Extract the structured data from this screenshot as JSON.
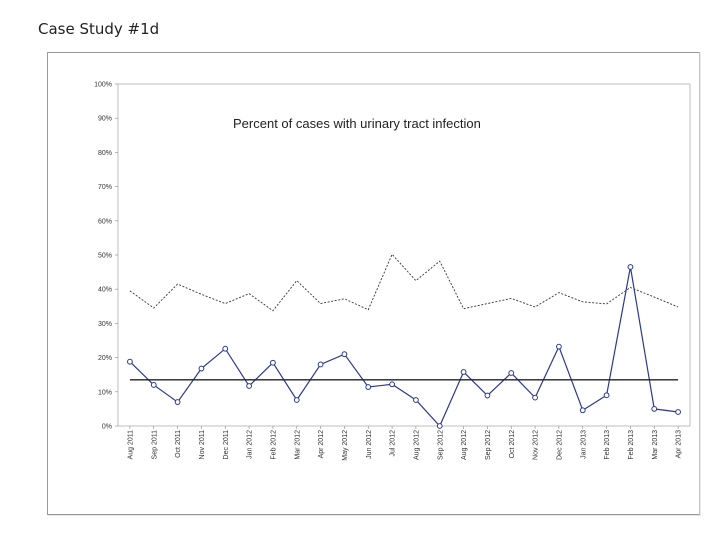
{
  "slide": {
    "title": "Case Study #1d"
  },
  "chart_data": {
    "type": "line",
    "title": "Percent of cases with urinary tract infection",
    "xlabel": "",
    "ylabel": "",
    "ylim": [
      0,
      100
    ],
    "y_ticks": [
      "0%",
      "10%",
      "20%",
      "30%",
      "40%",
      "50%",
      "60%",
      "70%",
      "80%",
      "90%",
      "100%"
    ],
    "categories": [
      "Aug 2011",
      "Sep 2011",
      "Oct 2011",
      "Nov 2011",
      "Dec 2011",
      "Jan 2012",
      "Feb 2012",
      "Mar 2012",
      "Apr 2012",
      "May 2012",
      "Jun 2012",
      "Jul 2012",
      "Aug 2012",
      "Sep 2012",
      "Aug 2012",
      "Sep 2012",
      "Oct 2012",
      "Nov 2012",
      "Dec 2012",
      "Jan 2013",
      "Feb 2013",
      "Feb 2013",
      "Mar 2013",
      "Apr 2013"
    ],
    "series": [
      {
        "role": "data",
        "color": "#2b3990",
        "marker": "circle",
        "values": [
          18.8,
          12.0,
          7.0,
          16.8,
          22.6,
          11.7,
          18.5,
          7.6,
          18.0,
          21.0,
          11.4,
          12.2,
          7.6,
          0.0,
          15.8,
          8.9,
          15.5,
          8.3,
          23.2,
          4.6,
          9.0,
          46.5,
          5.0,
          4.1
        ]
      },
      {
        "role": "upper-control-limit",
        "color": "#333333",
        "style": "dotted",
        "values": [
          39.5,
          34.5,
          41.5,
          38.5,
          35.8,
          38.7,
          33.7,
          42.5,
          35.8,
          37.2,
          34.0,
          50.2,
          42.5,
          48.2,
          34.3,
          35.8,
          37.3,
          34.8,
          39.0,
          36.3,
          35.7,
          40.5,
          37.7,
          34.8
        ]
      },
      {
        "role": "center-line",
        "color": "#222222",
        "style": "solid",
        "values": [
          13.5,
          13.5,
          13.5,
          13.5,
          13.5,
          13.5,
          13.5,
          13.5,
          13.5,
          13.5,
          13.5,
          13.5,
          13.5,
          13.5,
          13.5,
          13.5,
          13.5,
          13.5,
          13.5,
          13.5,
          13.5,
          13.5,
          13.5,
          13.5
        ]
      }
    ],
    "grid": false,
    "legend": "none"
  }
}
